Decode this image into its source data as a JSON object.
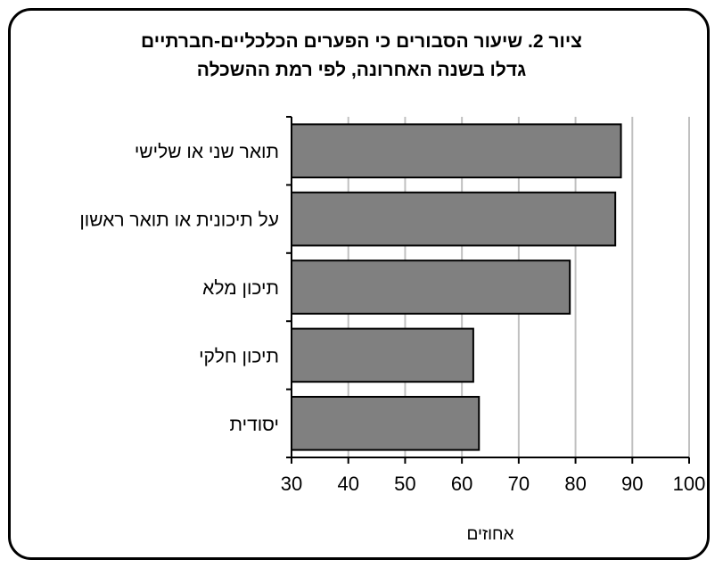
{
  "chart_data": {
    "type": "bar",
    "orientation": "horizontal",
    "title": "ציור 2.  שיעור הסבורים כי הפערים הכלכליים-חברתיים",
    "subtitle": "גדלו בשנה האחרונה, לפי רמת ההשכלה",
    "xlabel": "אחוזים",
    "ylabel": "",
    "categories": [
      "תואר שני או שלישי",
      "על תיכונית או תואר ראשון",
      "תיכון מלא",
      "תיכון חלקי",
      "יסודית"
    ],
    "values": [
      88,
      87,
      79,
      62,
      63
    ],
    "xlim": [
      30,
      100
    ],
    "xticks": [
      30,
      40,
      50,
      60,
      70,
      80,
      90,
      100
    ],
    "grid": true,
    "bar_color": "#808080",
    "grid_color": "#c0c0c0"
  }
}
